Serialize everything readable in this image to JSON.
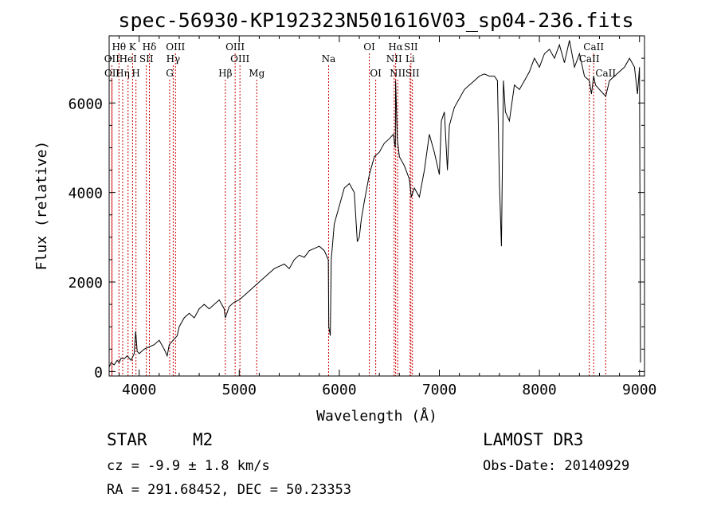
{
  "chart_data": {
    "type": "line",
    "title": "spec-56930-KP192323N501616V03_sp04-236.fits",
    "xlabel": "Wavelength (Å)",
    "ylabel": "Flux (relative)",
    "xlim": [
      3700,
      9050
    ],
    "ylim": [
      -100,
      7500
    ],
    "x_ticks": [
      4000,
      5000,
      6000,
      7000,
      8000,
      9000
    ],
    "y_ticks": [
      0,
      2000,
      4000,
      6000
    ],
    "grid": false,
    "series": [
      {
        "name": "flux",
        "x": [
          3700,
          3720,
          3750,
          3780,
          3800,
          3820,
          3850,
          3880,
          3900,
          3920,
          3950,
          3965,
          3980,
          4000,
          4050,
          4100,
          4150,
          4200,
          4250,
          4280,
          4300,
          4340,
          4380,
          4400,
          4450,
          4500,
          4550,
          4600,
          4650,
          4700,
          4750,
          4800,
          4850,
          4861,
          4900,
          4950,
          5000,
          5050,
          5100,
          5150,
          5200,
          5250,
          5300,
          5350,
          5400,
          5450,
          5500,
          5550,
          5600,
          5650,
          5700,
          5750,
          5800,
          5850,
          5890,
          5895,
          5910,
          5920,
          5950,
          6000,
          6050,
          6100,
          6150,
          6180,
          6200,
          6220,
          6250,
          6300,
          6350,
          6400,
          6450,
          6500,
          6540,
          6560,
          6563,
          6580,
          6600,
          6650,
          6700,
          6720,
          6750,
          6800,
          6850,
          6900,
          6950,
          7000,
          7020,
          7050,
          7080,
          7100,
          7150,
          7200,
          7250,
          7300,
          7350,
          7400,
          7450,
          7500,
          7550,
          7580,
          7600,
          7620,
          7640,
          7660,
          7700,
          7750,
          7800,
          7850,
          7900,
          7950,
          8000,
          8050,
          8100,
          8150,
          8200,
          8250,
          8300,
          8350,
          8400,
          8450,
          8498,
          8520,
          8542,
          8560,
          8600,
          8662,
          8700,
          8750,
          8800,
          8850,
          8900,
          8950,
          8980,
          9000,
          9010
        ],
        "values": [
          100,
          200,
          150,
          250,
          200,
          300,
          280,
          350,
          300,
          250,
          400,
          900,
          450,
          400,
          500,
          550,
          600,
          700,
          500,
          350,
          600,
          700,
          800,
          1000,
          1200,
          1300,
          1200,
          1400,
          1500,
          1400,
          1500,
          1600,
          1400,
          1200,
          1450,
          1550,
          1600,
          1700,
          1800,
          1900,
          2000,
          2100,
          2200,
          2300,
          2350,
          2400,
          2300,
          2500,
          2600,
          2550,
          2700,
          2750,
          2800,
          2700,
          2500,
          1000,
          800,
          2500,
          3300,
          3700,
          4100,
          4200,
          4000,
          2900,
          3000,
          3400,
          3800,
          4400,
          4800,
          4900,
          5100,
          5200,
          5300,
          5000,
          6500,
          5200,
          4800,
          4600,
          4300,
          3900,
          4100,
          3900,
          4500,
          5300,
          4900,
          4400,
          5600,
          5800,
          4500,
          5500,
          5900,
          6100,
          6300,
          6400,
          6500,
          6600,
          6650,
          6600,
          6600,
          6500,
          4200,
          2800,
          6500,
          5800,
          5600,
          6400,
          6300,
          6500,
          6700,
          7000,
          6800,
          7100,
          7200,
          7000,
          7300,
          6900,
          7400,
          6800,
          7100,
          6600,
          6500,
          6200,
          6600,
          6400,
          6300,
          6150,
          6500,
          6600,
          6700,
          6800,
          7000,
          6800,
          6200,
          6800,
          200
        ],
        "color": "#000000"
      }
    ],
    "emission_lines": [
      {
        "name": "Hθ",
        "wavelength": 3798,
        "row": 1
      },
      {
        "name": "K",
        "wavelength": 3934,
        "row": 1
      },
      {
        "name": "Hδ",
        "wavelength": 4102,
        "row": 1
      },
      {
        "name": "OIII",
        "wavelength": 4363,
        "row": 1
      },
      {
        "name": "OIII",
        "wavelength": 4959,
        "row": 1
      },
      {
        "name": "OI",
        "wavelength": 6300,
        "row": 1
      },
      {
        "name": "Hα",
        "wavelength": 6563,
        "row": 1
      },
      {
        "name": "SII",
        "wavelength": 6716,
        "row": 1
      },
      {
        "name": "CaII",
        "wavelength": 8542,
        "row": 1
      },
      {
        "name": "OII",
        "wavelength": 3727,
        "row": 2
      },
      {
        "name": "HeI",
        "wavelength": 3889,
        "row": 2
      },
      {
        "name": "SII",
        "wavelength": 4072,
        "row": 2
      },
      {
        "name": "Hγ",
        "wavelength": 4340,
        "row": 2
      },
      {
        "name": "OIII",
        "wavelength": 5007,
        "row": 2
      },
      {
        "name": "Na",
        "wavelength": 5893,
        "row": 2
      },
      {
        "name": "NII",
        "wavelength": 6548,
        "row": 2
      },
      {
        "name": "Li",
        "wavelength": 6708,
        "row": 2
      },
      {
        "name": "CaII",
        "wavelength": 8498,
        "row": 2
      },
      {
        "name": "OII",
        "wavelength": 3729,
        "row": 3
      },
      {
        "name": "Hη",
        "wavelength": 3835,
        "row": 3
      },
      {
        "name": "H",
        "wavelength": 3968,
        "row": 3
      },
      {
        "name": "G",
        "wavelength": 4305,
        "row": 3
      },
      {
        "name": "Hβ",
        "wavelength": 4861,
        "row": 3
      },
      {
        "name": "Mg",
        "wavelength": 5175,
        "row": 3
      },
      {
        "name": "OI",
        "wavelength": 6364,
        "row": 3
      },
      {
        "name": "NII",
        "wavelength": 6583,
        "row": 3
      },
      {
        "name": "SII",
        "wavelength": 6731,
        "row": 3
      },
      {
        "name": "CaII",
        "wavelength": 8662,
        "row": 3
      }
    ],
    "line_color": "#cc0000"
  },
  "info": {
    "object_class": "STAR",
    "subclass": "M2",
    "survey": "LAMOST DR3",
    "redshift": "cz = -9.9 ± 1.8 km/s",
    "obs_date": "Obs-Date: 20140929",
    "coords": "RA = 291.68452, DEC =  50.23353"
  }
}
